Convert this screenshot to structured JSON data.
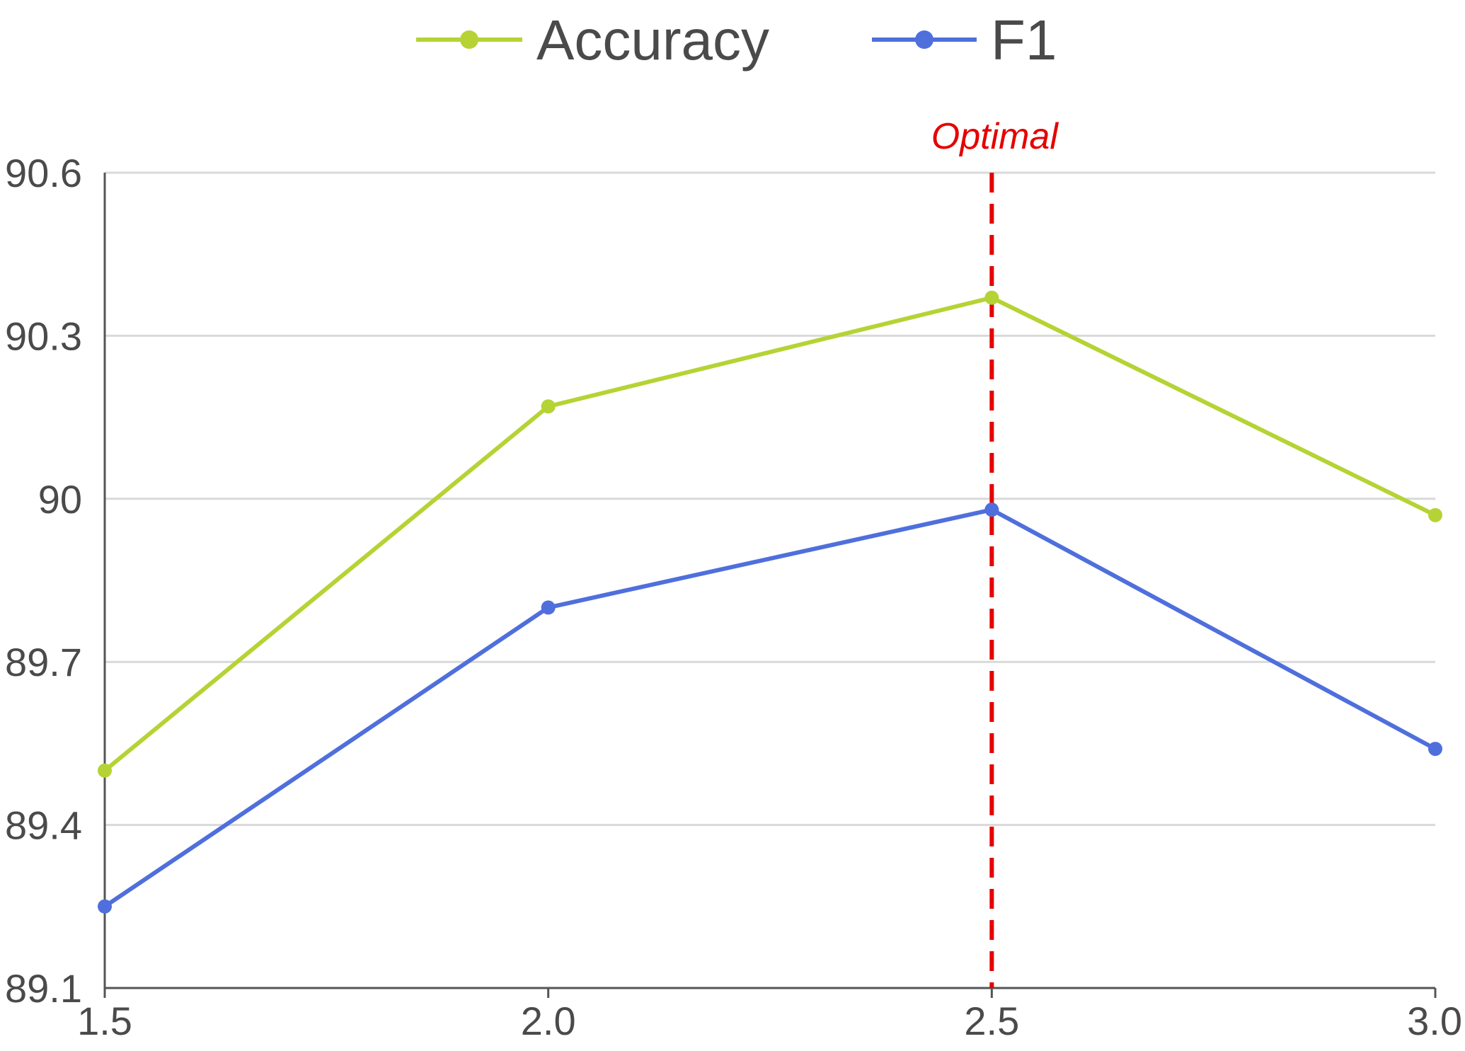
{
  "chart_data": {
    "type": "line",
    "x": [
      1.5,
      2.0,
      2.5,
      3.0
    ],
    "x_tick_labels": [
      "1.5",
      "2.0",
      "2.5",
      "3.0"
    ],
    "y_ticks": [
      89.1,
      89.4,
      89.7,
      90,
      90.3,
      90.6
    ],
    "y_tick_labels": [
      "89.1",
      "89.4",
      "89.7",
      "90",
      "90.3",
      "90.6"
    ],
    "xlim": [
      1.5,
      3.0
    ],
    "ylim": [
      89.1,
      90.6
    ],
    "grid": "horizontal",
    "legend_position": "top-center",
    "series": [
      {
        "name": "Accuracy",
        "color": "#b5d334",
        "values": [
          89.5,
          90.17,
          90.37,
          89.97
        ]
      },
      {
        "name": "F1",
        "color": "#4f6fdc",
        "values": [
          89.25,
          89.8,
          89.98,
          89.54
        ]
      }
    ],
    "annotation": {
      "label": "Optimal",
      "x": 2.5,
      "color": "#e60000"
    }
  }
}
